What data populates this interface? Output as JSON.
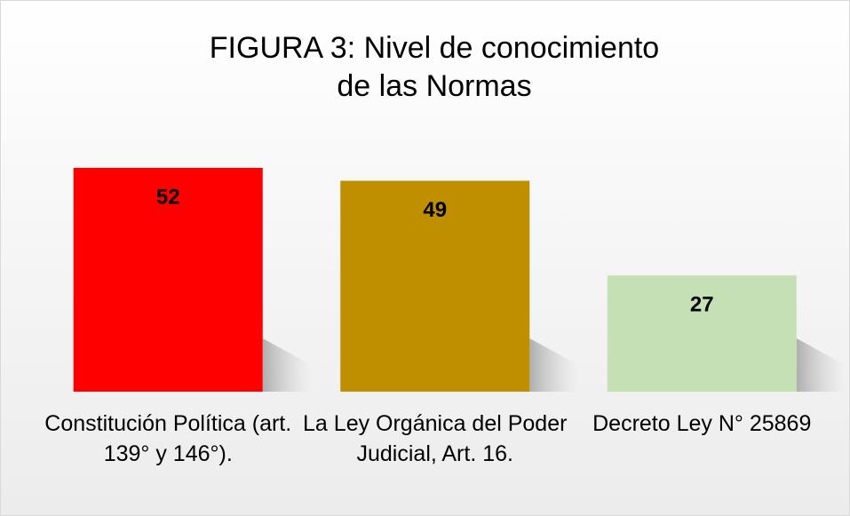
{
  "chart_data": {
    "type": "bar",
    "title": "FIGURA 3: Nivel de conocimiento de las Normas",
    "categories": [
      "Constitución Política (art. 139° y 146°).",
      "La Ley Orgánica del Poder Judicial, Art. 16.",
      "Decreto Ley N° 25869"
    ],
    "values": [
      52,
      49,
      27
    ],
    "colors": [
      "#ff0000",
      "#bf8f00",
      "#c5e0b4"
    ],
    "grid": false
  }
}
